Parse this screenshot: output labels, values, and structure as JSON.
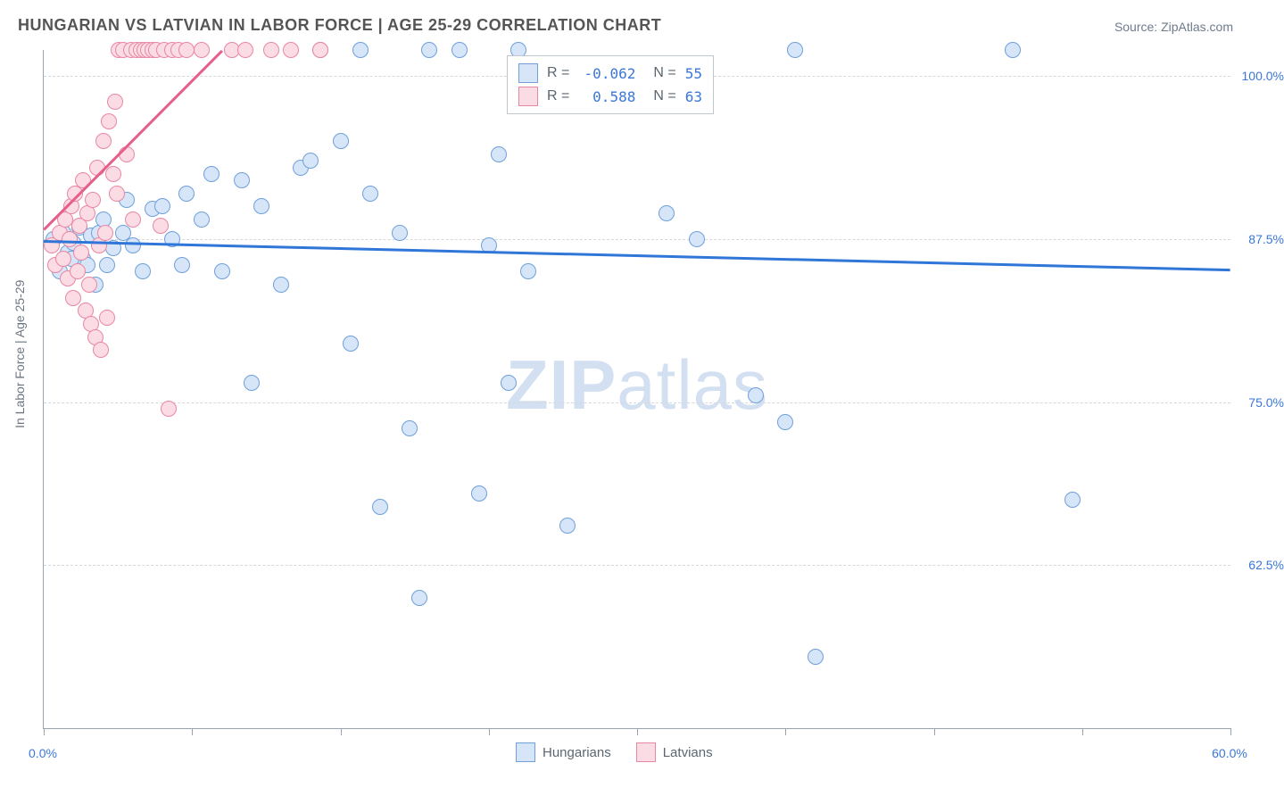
{
  "title": "HUNGARIAN VS LATVIAN IN LABOR FORCE | AGE 25-29 CORRELATION CHART",
  "source": "Source: ZipAtlas.com",
  "yaxis_title": "In Labor Force | Age 25-29",
  "watermark_bold": "ZIP",
  "watermark_rest": "atlas",
  "chart": {
    "type": "scatter",
    "xlim": [
      0,
      60
    ],
    "ylim": [
      50,
      102
    ],
    "x_min_label": "0.0%",
    "x_max_label": "60.0%",
    "x_ticks": [
      0,
      7.5,
      15,
      22.5,
      30,
      37.5,
      45,
      52.5,
      60
    ],
    "y_gridlines": [
      62.5,
      75.0,
      87.5,
      100.0
    ],
    "y_labels": [
      "62.5%",
      "75.0%",
      "87.5%",
      "100.0%"
    ],
    "background_color": "#ffffff",
    "grid_color": "#d5d9dd",
    "axis_color": "#9aa4af",
    "label_color": "#3a77d8",
    "marker_radius": 9,
    "marker_border_width": 1.6,
    "series": [
      {
        "name": "Hungarians",
        "fill": "#d6e5f7",
        "stroke": "#6fa0db",
        "trend_color": "#2f76d8",
        "R": "-0.062",
        "N": "55",
        "trend": {
          "x1": 0,
          "y1": 87.4,
          "x2": 60,
          "y2": 85.2
        },
        "points": [
          [
            0.5,
            87.5
          ],
          [
            1.0,
            88.0
          ],
          [
            1.2,
            86.5
          ],
          [
            1.5,
            87.2
          ],
          [
            1.8,
            88.4
          ],
          [
            2.0,
            86.0
          ],
          [
            2.2,
            85.5
          ],
          [
            2.4,
            87.8
          ],
          [
            2.6,
            84.0
          ],
          [
            2.8,
            88.0
          ],
          [
            0.8,
            85.0
          ],
          [
            1.4,
            86.0
          ],
          [
            3.0,
            89.0
          ],
          [
            3.2,
            85.5
          ],
          [
            3.5,
            86.8
          ],
          [
            4.0,
            88.0
          ],
          [
            4.2,
            90.5
          ],
          [
            4.5,
            87.0
          ],
          [
            5.0,
            85.0
          ],
          [
            5.5,
            89.8
          ],
          [
            6.0,
            90.0
          ],
          [
            6.5,
            87.5
          ],
          [
            7.0,
            85.5
          ],
          [
            7.2,
            91.0
          ],
          [
            8.0,
            89.0
          ],
          [
            8.5,
            92.5
          ],
          [
            9.0,
            85.0
          ],
          [
            10.0,
            92.0
          ],
          [
            10.5,
            76.5
          ],
          [
            11.0,
            90.0
          ],
          [
            12.0,
            84.0
          ],
          [
            13.0,
            93.0
          ],
          [
            13.5,
            93.5
          ],
          [
            14.0,
            102.0
          ],
          [
            15.0,
            95.0
          ],
          [
            15.5,
            79.5
          ],
          [
            16.0,
            102.0
          ],
          [
            16.5,
            91.0
          ],
          [
            17.0,
            67.0
          ],
          [
            18.0,
            88.0
          ],
          [
            18.5,
            73.0
          ],
          [
            19.0,
            60.0
          ],
          [
            19.5,
            102.0
          ],
          [
            21.0,
            102.0
          ],
          [
            22.0,
            68.0
          ],
          [
            22.5,
            87.0
          ],
          [
            23.0,
            94.0
          ],
          [
            23.5,
            76.5
          ],
          [
            24.0,
            102.0
          ],
          [
            24.5,
            85.0
          ],
          [
            26.5,
            65.5
          ],
          [
            31.5,
            89.5
          ],
          [
            33.0,
            87.5
          ],
          [
            36.0,
            75.5
          ],
          [
            37.5,
            73.5
          ],
          [
            38.0,
            102.0
          ],
          [
            39.0,
            55.5
          ],
          [
            49.0,
            102.0
          ],
          [
            52.0,
            67.5
          ]
        ]
      },
      {
        "name": "Latvians",
        "fill": "#fbdbe4",
        "stroke": "#e887a3",
        "trend_color": "#e65e8b",
        "R": "0.588",
        "N": "63",
        "trend": {
          "x1": 0,
          "y1": 88.3,
          "x2": 9.0,
          "y2": 102.0
        },
        "points": [
          [
            0.4,
            87.0
          ],
          [
            0.6,
            85.5
          ],
          [
            0.8,
            88.0
          ],
          [
            1.0,
            86.0
          ],
          [
            1.1,
            89.0
          ],
          [
            1.2,
            84.5
          ],
          [
            1.3,
            87.5
          ],
          [
            1.4,
            90.0
          ],
          [
            1.5,
            83.0
          ],
          [
            1.6,
            91.0
          ],
          [
            1.7,
            85.0
          ],
          [
            1.8,
            88.5
          ],
          [
            1.9,
            86.5
          ],
          [
            2.0,
            92.0
          ],
          [
            2.1,
            82.0
          ],
          [
            2.2,
            89.5
          ],
          [
            2.3,
            84.0
          ],
          [
            2.4,
            81.0
          ],
          [
            2.5,
            90.5
          ],
          [
            2.6,
            80.0
          ],
          [
            2.7,
            93.0
          ],
          [
            2.8,
            87.0
          ],
          [
            2.9,
            79.0
          ],
          [
            3.0,
            95.0
          ],
          [
            3.1,
            88.0
          ],
          [
            3.2,
            81.5
          ],
          [
            3.3,
            96.5
          ],
          [
            3.5,
            92.5
          ],
          [
            3.7,
            91.0
          ],
          [
            3.8,
            102.0
          ],
          [
            4.0,
            102.0
          ],
          [
            4.2,
            94.0
          ],
          [
            4.4,
            102.0
          ],
          [
            4.5,
            89.0
          ],
          [
            4.7,
            102.0
          ],
          [
            4.9,
            102.0
          ],
          [
            5.1,
            102.0
          ],
          [
            5.3,
            102.0
          ],
          [
            5.5,
            102.0
          ],
          [
            5.7,
            102.0
          ],
          [
            5.9,
            88.5
          ],
          [
            6.1,
            102.0
          ],
          [
            6.3,
            74.5
          ],
          [
            6.5,
            102.0
          ],
          [
            6.8,
            102.0
          ],
          [
            7.2,
            102.0
          ],
          [
            8.0,
            102.0
          ],
          [
            9.5,
            102.0
          ],
          [
            10.2,
            102.0
          ],
          [
            11.5,
            102.0
          ],
          [
            12.5,
            102.0
          ],
          [
            14.0,
            102.0
          ],
          [
            3.6,
            98.0
          ]
        ]
      }
    ]
  },
  "legend_bottom": {
    "items": [
      {
        "label": "Hungarians",
        "fill": "#d6e5f7",
        "stroke": "#6fa0db"
      },
      {
        "label": "Latvians",
        "fill": "#fbdbe4",
        "stroke": "#e887a3"
      }
    ]
  },
  "legend_top": {
    "r_label": "R =",
    "n_label": "N ="
  }
}
